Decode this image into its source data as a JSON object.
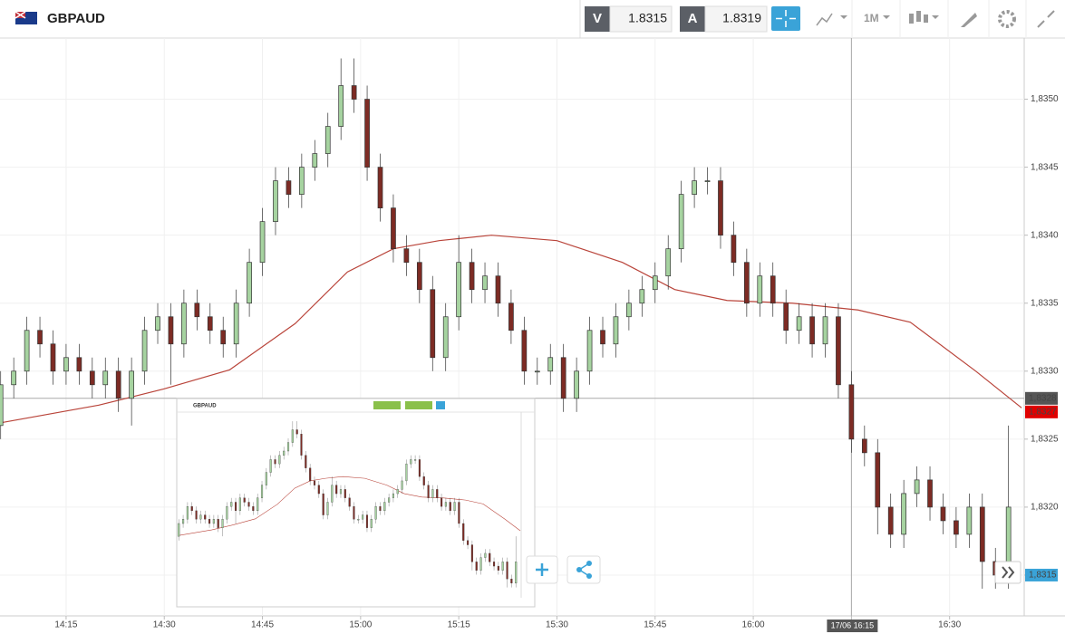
{
  "header": {
    "symbol": "GBPAUD",
    "bid": {
      "label": "V",
      "value": 1.8315
    },
    "ask": {
      "label": "A",
      "value": 1.8319
    },
    "timeframe": "1M"
  },
  "chart_data": {
    "type": "candlestick",
    "xlim": [
      844.9,
      1001.4
    ],
    "ylim": [
      1.8312,
      1.83545
    ],
    "xticks": [
      {
        "value": 855,
        "label": "14:15"
      },
      {
        "value": 870,
        "label": "14:30"
      },
      {
        "value": 885,
        "label": "14:45"
      },
      {
        "value": 900,
        "label": "15:00"
      },
      {
        "value": 915,
        "label": "15:15"
      },
      {
        "value": 930,
        "label": "15:30"
      },
      {
        "value": 945,
        "label": "15:45"
      },
      {
        "value": 960,
        "label": "16:00"
      },
      {
        "value": 975,
        "label": "16:15"
      },
      {
        "value": 990,
        "label": "16:30"
      }
    ],
    "yticks": [
      {
        "value": 1.8315,
        "label": "1,8315"
      },
      {
        "value": 1.832,
        "label": "1,8320"
      },
      {
        "value": 1.8325,
        "label": "1,8325"
      },
      {
        "value": 1.833,
        "label": "1,8330"
      },
      {
        "value": 1.8335,
        "label": "1,8335"
      },
      {
        "value": 1.834,
        "label": "1,8340"
      },
      {
        "value": 1.8345,
        "label": "1,8345"
      },
      {
        "value": 1.835,
        "label": "1,8350"
      }
    ],
    "grid": true,
    "up_color": "#a6d3a0",
    "down_color": "#7d2b24",
    "candles": {
      "x": [
        845,
        847,
        849,
        851,
        853,
        855,
        857,
        859,
        861,
        863,
        865,
        867,
        869,
        871,
        873,
        875,
        877,
        879,
        881,
        883,
        885,
        887,
        889,
        891,
        893,
        895,
        897,
        899,
        901,
        903,
        905,
        907,
        909,
        911,
        913,
        915,
        917,
        919,
        921,
        923,
        925,
        927,
        929,
        931,
        933,
        935,
        937,
        939,
        941,
        943,
        945,
        947,
        949,
        951,
        953,
        955,
        957,
        959,
        961,
        963,
        965,
        967,
        969,
        971,
        973,
        975,
        977,
        979,
        981,
        983,
        985,
        987,
        989,
        991,
        993,
        995,
        997,
        999
      ],
      "open": [
        1.8326,
        1.8329,
        1.833,
        1.8333,
        1.8332,
        1.833,
        1.8331,
        1.833,
        1.8329,
        1.833,
        1.8328,
        1.833,
        1.8333,
        1.8334,
        1.8332,
        1.8335,
        1.8334,
        1.8333,
        1.8332,
        1.8335,
        1.8338,
        1.8341,
        1.8344,
        1.8343,
        1.8345,
        1.8346,
        1.8348,
        1.8351,
        1.835,
        1.8345,
        1.8342,
        1.8339,
        1.8338,
        1.8336,
        1.8331,
        1.8334,
        1.8338,
        1.8336,
        1.8337,
        1.8335,
        1.8333,
        1.833,
        1.833,
        1.8331,
        1.8328,
        1.833,
        1.8333,
        1.8332,
        1.8334,
        1.8335,
        1.8336,
        1.8337,
        1.8339,
        1.8343,
        1.8344,
        1.8344,
        1.834,
        1.8338,
        1.8335,
        1.8337,
        1.8335,
        1.8333,
        1.8334,
        1.8332,
        1.8334,
        1.8329,
        1.8325,
        1.8324,
        1.832,
        1.8318,
        1.8321,
        1.8322,
        1.832,
        1.8319,
        1.8318,
        1.832,
        1.8316,
        1.8315
      ],
      "high": [
        1.833,
        1.8331,
        1.8334,
        1.8334,
        1.8333,
        1.8332,
        1.8332,
        1.8331,
        1.8331,
        1.8331,
        1.8331,
        1.8334,
        1.8335,
        1.8335,
        1.8336,
        1.8336,
        1.8335,
        1.8334,
        1.8336,
        1.8339,
        1.8342,
        1.8345,
        1.8345,
        1.8346,
        1.8347,
        1.8349,
        1.8353,
        1.8353,
        1.8351,
        1.8346,
        1.8343,
        1.834,
        1.8339,
        1.8337,
        1.8335,
        1.834,
        1.8339,
        1.8338,
        1.8338,
        1.8336,
        1.8334,
        1.8331,
        1.8332,
        1.8332,
        1.8331,
        1.8334,
        1.8334,
        1.8335,
        1.8336,
        1.8337,
        1.8338,
        1.834,
        1.8344,
        1.8345,
        1.8345,
        1.8345,
        1.8341,
        1.8339,
        1.8338,
        1.8338,
        1.8336,
        1.8335,
        1.8335,
        1.8335,
        1.8335,
        1.833,
        1.8326,
        1.8325,
        1.8321,
        1.8322,
        1.8323,
        1.8323,
        1.8321,
        1.832,
        1.8321,
        1.8321,
        1.8317,
        1.8326
      ],
      "low": [
        1.8325,
        1.8328,
        1.8329,
        1.8331,
        1.8329,
        1.8329,
        1.8329,
        1.8328,
        1.8328,
        1.8327,
        1.8326,
        1.8329,
        1.8332,
        1.8329,
        1.8331,
        1.8333,
        1.8332,
        1.8331,
        1.8331,
        1.8334,
        1.8337,
        1.834,
        1.8342,
        1.8342,
        1.8344,
        1.8345,
        1.8347,
        1.8349,
        1.8344,
        1.8341,
        1.8338,
        1.8337,
        1.8335,
        1.833,
        1.833,
        1.8333,
        1.8335,
        1.8335,
        1.8334,
        1.8332,
        1.8329,
        1.8329,
        1.8329,
        1.8327,
        1.8327,
        1.8329,
        1.8331,
        1.8331,
        1.8333,
        1.8334,
        1.8335,
        1.8336,
        1.8338,
        1.8342,
        1.8343,
        1.8339,
        1.8337,
        1.8334,
        1.8334,
        1.8334,
        1.8332,
        1.8332,
        1.8331,
        1.8331,
        1.8328,
        1.8324,
        1.8323,
        1.8318,
        1.8317,
        1.8317,
        1.832,
        1.8319,
        1.8318,
        1.8317,
        1.8317,
        1.8314,
        1.8314,
        1.8314
      ],
      "close": [
        1.8329,
        1.833,
        1.8333,
        1.8332,
        1.833,
        1.8331,
        1.833,
        1.8329,
        1.833,
        1.8328,
        1.833,
        1.8333,
        1.8334,
        1.8332,
        1.8335,
        1.8334,
        1.8333,
        1.8332,
        1.8335,
        1.8338,
        1.8341,
        1.8344,
        1.8343,
        1.8345,
        1.8346,
        1.8348,
        1.8351,
        1.835,
        1.8345,
        1.8342,
        1.8339,
        1.8338,
        1.8336,
        1.8331,
        1.8334,
        1.8338,
        1.8336,
        1.8337,
        1.8335,
        1.8333,
        1.833,
        1.833,
        1.8331,
        1.8328,
        1.833,
        1.8333,
        1.8332,
        1.8334,
        1.8335,
        1.8336,
        1.8337,
        1.8339,
        1.8343,
        1.8344,
        1.8344,
        1.834,
        1.8338,
        1.8335,
        1.8337,
        1.8335,
        1.8333,
        1.8334,
        1.8332,
        1.8334,
        1.8329,
        1.8325,
        1.8324,
        1.832,
        1.8318,
        1.8321,
        1.8322,
        1.832,
        1.8319,
        1.8318,
        1.832,
        1.8316,
        1.8315,
        1.832
      ]
    },
    "moving_average": {
      "color": "#b9443a",
      "x": [
        845,
        860,
        870,
        880,
        890,
        898,
        905,
        912,
        920,
        930,
        940,
        948,
        956,
        966,
        976,
        984,
        994,
        1001
      ],
      "values": [
        1.83262,
        1.83275,
        1.83287,
        1.83301,
        1.83335,
        1.83373,
        1.8339,
        1.83396,
        1.834,
        1.83396,
        1.8338,
        1.8336,
        1.83352,
        1.8335,
        1.83345,
        1.83336,
        1.833,
        1.83273
      ]
    },
    "price_markers": [
      {
        "value": 1.8328,
        "label": "1,8328",
        "color": "#555555"
      },
      {
        "value": 1.8327,
        "label": "1,8327",
        "color": "#e00000"
      },
      {
        "value": 1.8315,
        "label": "1,8315",
        "color": "#3aa3d8"
      }
    ],
    "crosshair": {
      "x": 975,
      "label": "17/06 16:15"
    }
  }
}
